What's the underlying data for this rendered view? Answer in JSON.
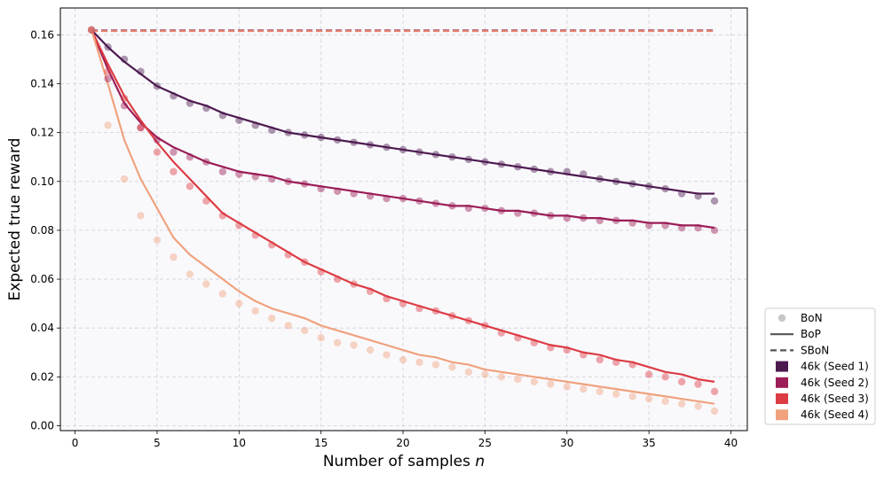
{
  "chart_data": {
    "type": "line",
    "title": "",
    "xlabel": "Number of samples n",
    "xlabel_main": "Number of samples ",
    "xlabel_var": "n",
    "ylabel": "Expected true reward",
    "xlim": [
      -0.9,
      41.0
    ],
    "ylim": [
      -0.002,
      0.171
    ],
    "xticks": [
      0,
      5,
      10,
      15,
      20,
      25,
      30,
      35,
      40
    ],
    "yticks": [
      0.0,
      0.02,
      0.04,
      0.06,
      0.08,
      0.1,
      0.12,
      0.14,
      0.16
    ],
    "ytick_labels": [
      "0.00",
      "0.02",
      "0.04",
      "0.06",
      "0.08",
      "0.10",
      "0.12",
      "0.14",
      "0.16"
    ],
    "grid": true,
    "legend_position": "outside-right-bottom",
    "legend": {
      "styles": [
        {
          "label": "BoN",
          "kind": "marker"
        },
        {
          "label": "BoP",
          "kind": "solid"
        },
        {
          "label": "SBoN",
          "kind": "dashed"
        }
      ],
      "series_labels": [
        "46k (Seed 1)",
        "46k (Seed 2)",
        "46k (Seed 3)",
        "46k (Seed 4)"
      ]
    },
    "series": [
      {
        "name": "46k (Seed 1)",
        "color": "#4d1a4f",
        "bon": [
          0.162,
          0.155,
          0.15,
          0.145,
          0.139,
          0.135,
          0.132,
          0.13,
          0.127,
          0.125,
          0.123,
          0.121,
          0.12,
          0.119,
          0.118,
          0.117,
          0.116,
          0.115,
          0.114,
          0.113,
          0.112,
          0.111,
          0.11,
          0.109,
          0.108,
          0.107,
          0.106,
          0.105,
          0.104,
          0.104,
          0.103,
          0.101,
          0.1,
          0.099,
          0.098,
          0.097,
          0.095,
          0.094,
          0.092
        ],
        "bop": [
          0.162,
          0.155,
          0.149,
          0.144,
          0.139,
          0.136,
          0.133,
          0.131,
          0.128,
          0.126,
          0.124,
          0.122,
          0.12,
          0.119,
          0.118,
          0.117,
          0.116,
          0.115,
          0.114,
          0.113,
          0.112,
          0.111,
          0.11,
          0.109,
          0.108,
          0.107,
          0.106,
          0.105,
          0.104,
          0.103,
          0.102,
          0.101,
          0.1,
          0.099,
          0.098,
          0.097,
          0.096,
          0.095,
          0.095
        ],
        "sbon": 0.1618
      },
      {
        "name": "46k (Seed 2)",
        "color": "#9c1d57",
        "bon": [
          0.162,
          0.142,
          0.131,
          0.122,
          0.117,
          0.112,
          0.11,
          0.108,
          0.104,
          0.103,
          0.102,
          0.101,
          0.1,
          0.099,
          0.097,
          0.096,
          0.095,
          0.094,
          0.093,
          0.093,
          0.092,
          0.091,
          0.09,
          0.089,
          0.089,
          0.088,
          0.087,
          0.087,
          0.086,
          0.085,
          0.085,
          0.084,
          0.084,
          0.083,
          0.082,
          0.082,
          0.081,
          0.081,
          0.08
        ],
        "bop": [
          0.162,
          0.146,
          0.132,
          0.124,
          0.118,
          0.114,
          0.111,
          0.108,
          0.106,
          0.104,
          0.103,
          0.102,
          0.1,
          0.099,
          0.098,
          0.097,
          0.096,
          0.095,
          0.094,
          0.093,
          0.092,
          0.091,
          0.09,
          0.09,
          0.089,
          0.088,
          0.088,
          0.087,
          0.086,
          0.086,
          0.085,
          0.085,
          0.084,
          0.084,
          0.083,
          0.083,
          0.082,
          0.082,
          0.081
        ],
        "sbon": 0.1618
      },
      {
        "name": "46k (Seed 3)",
        "color": "#dd3c44",
        "bon": [
          0.162,
          0.145,
          0.134,
          0.122,
          0.112,
          0.104,
          0.098,
          0.092,
          0.086,
          0.082,
          0.078,
          0.074,
          0.07,
          0.067,
          0.063,
          0.06,
          0.058,
          0.055,
          0.052,
          0.05,
          0.048,
          0.047,
          0.045,
          0.043,
          0.041,
          0.038,
          0.036,
          0.034,
          0.032,
          0.031,
          0.029,
          0.027,
          0.026,
          0.025,
          0.021,
          0.02,
          0.018,
          0.017,
          0.014
        ],
        "bop": [
          0.162,
          0.148,
          0.135,
          0.125,
          0.116,
          0.108,
          0.101,
          0.094,
          0.087,
          0.083,
          0.079,
          0.075,
          0.071,
          0.067,
          0.064,
          0.061,
          0.058,
          0.056,
          0.053,
          0.051,
          0.049,
          0.047,
          0.045,
          0.043,
          0.041,
          0.039,
          0.037,
          0.035,
          0.033,
          0.032,
          0.03,
          0.029,
          0.027,
          0.026,
          0.024,
          0.022,
          0.021,
          0.019,
          0.018
        ],
        "sbon": 0.1618
      },
      {
        "name": "46k (Seed 4)",
        "color": "#f0a27e",
        "bon": [
          0.162,
          0.123,
          0.101,
          0.086,
          0.076,
          0.069,
          0.062,
          0.058,
          0.054,
          0.05,
          0.047,
          0.044,
          0.041,
          0.039,
          0.036,
          0.034,
          0.033,
          0.031,
          0.029,
          0.027,
          0.026,
          0.025,
          0.024,
          0.022,
          0.021,
          0.02,
          0.019,
          0.018,
          0.017,
          0.016,
          0.015,
          0.014,
          0.013,
          0.012,
          0.011,
          0.01,
          0.009,
          0.008,
          0.006
        ],
        "bop": [
          0.162,
          0.14,
          0.117,
          0.101,
          0.089,
          0.077,
          0.07,
          0.065,
          0.06,
          0.055,
          0.051,
          0.048,
          0.046,
          0.044,
          0.041,
          0.039,
          0.037,
          0.035,
          0.033,
          0.031,
          0.029,
          0.028,
          0.026,
          0.025,
          0.023,
          0.022,
          0.021,
          0.02,
          0.019,
          0.018,
          0.017,
          0.016,
          0.015,
          0.014,
          0.013,
          0.012,
          0.011,
          0.01,
          0.009
        ],
        "sbon": 0.1618
      }
    ]
  }
}
